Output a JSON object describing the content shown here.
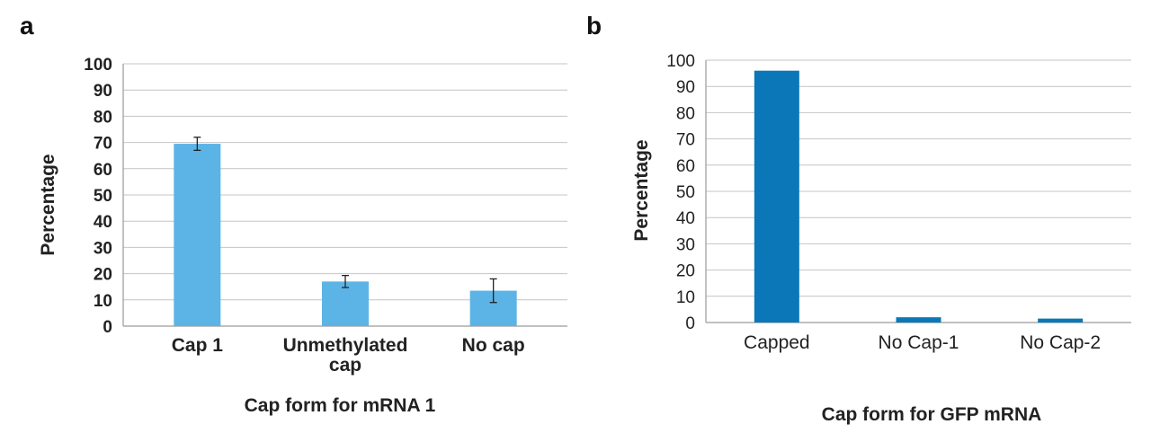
{
  "chart_data": [
    {
      "panel": "a",
      "type": "bar",
      "categories": [
        [
          "Cap 1"
        ],
        [
          "Unmethylated",
          "cap"
        ],
        [
          "No cap"
        ]
      ],
      "values": [
        69.5,
        17,
        13.5
      ],
      "errors": [
        2.5,
        2.3,
        4.5
      ],
      "xlabel": "Cap form for mRNA 1",
      "ylabel": "Percentage",
      "ylim": [
        0,
        100
      ],
      "yticks": [
        0,
        10,
        20,
        30,
        40,
        50,
        60,
        70,
        80,
        90,
        100
      ],
      "grid": true,
      "bar_color": "#5bb4e5"
    },
    {
      "panel": "b",
      "type": "bar",
      "categories": [
        [
          "Capped"
        ],
        [
          "No Cap-1"
        ],
        [
          "No Cap-2"
        ]
      ],
      "values": [
        96,
        2,
        1.5
      ],
      "xlabel": "Cap form for GFP mRNA",
      "ylabel": "Percentage",
      "ylim": [
        0,
        100
      ],
      "yticks": [
        0,
        10,
        20,
        30,
        40,
        50,
        60,
        70,
        80,
        90,
        100
      ],
      "grid": true,
      "bar_color": "#0b77b8"
    }
  ]
}
